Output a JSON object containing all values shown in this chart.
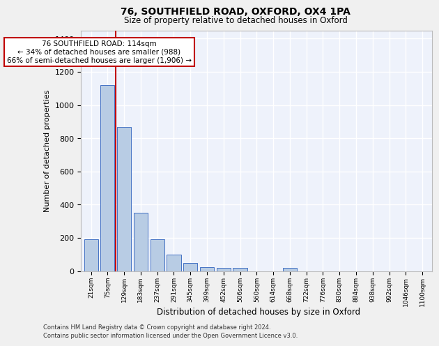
{
  "title1": "76, SOUTHFIELD ROAD, OXFORD, OX4 1PA",
  "title2": "Size of property relative to detached houses in Oxford",
  "xlabel": "Distribution of detached houses by size in Oxford",
  "ylabel": "Number of detached properties",
  "categories": [
    "21sqm",
    "75sqm",
    "129sqm",
    "183sqm",
    "237sqm",
    "291sqm",
    "345sqm",
    "399sqm",
    "452sqm",
    "506sqm",
    "560sqm",
    "614sqm",
    "668sqm",
    "722sqm",
    "776sqm",
    "830sqm",
    "884sqm",
    "938sqm",
    "992sqm",
    "1046sqm",
    "1100sqm"
  ],
  "values": [
    190,
    1120,
    870,
    350,
    190,
    100,
    50,
    25,
    20,
    20,
    0,
    0,
    20,
    0,
    0,
    0,
    0,
    0,
    0,
    0,
    0
  ],
  "bar_color": "#b8cce4",
  "bar_edge_color": "#4472c4",
  "property_line_color": "#c00000",
  "annotation_text": "76 SOUTHFIELD ROAD: 114sqm\n← 34% of detached houses are smaller (988)\n66% of semi-detached houses are larger (1,906) →",
  "annotation_box_color": "#ffffff",
  "annotation_box_edge": "#c00000",
  "ylim": [
    0,
    1450
  ],
  "yticks": [
    0,
    200,
    400,
    600,
    800,
    1000,
    1200,
    1400
  ],
  "background_color": "#eef2fb",
  "grid_color": "#ffffff",
  "footer1": "Contains HM Land Registry data © Crown copyright and database right 2024.",
  "footer2": "Contains public sector information licensed under the Open Government Licence v3.0."
}
